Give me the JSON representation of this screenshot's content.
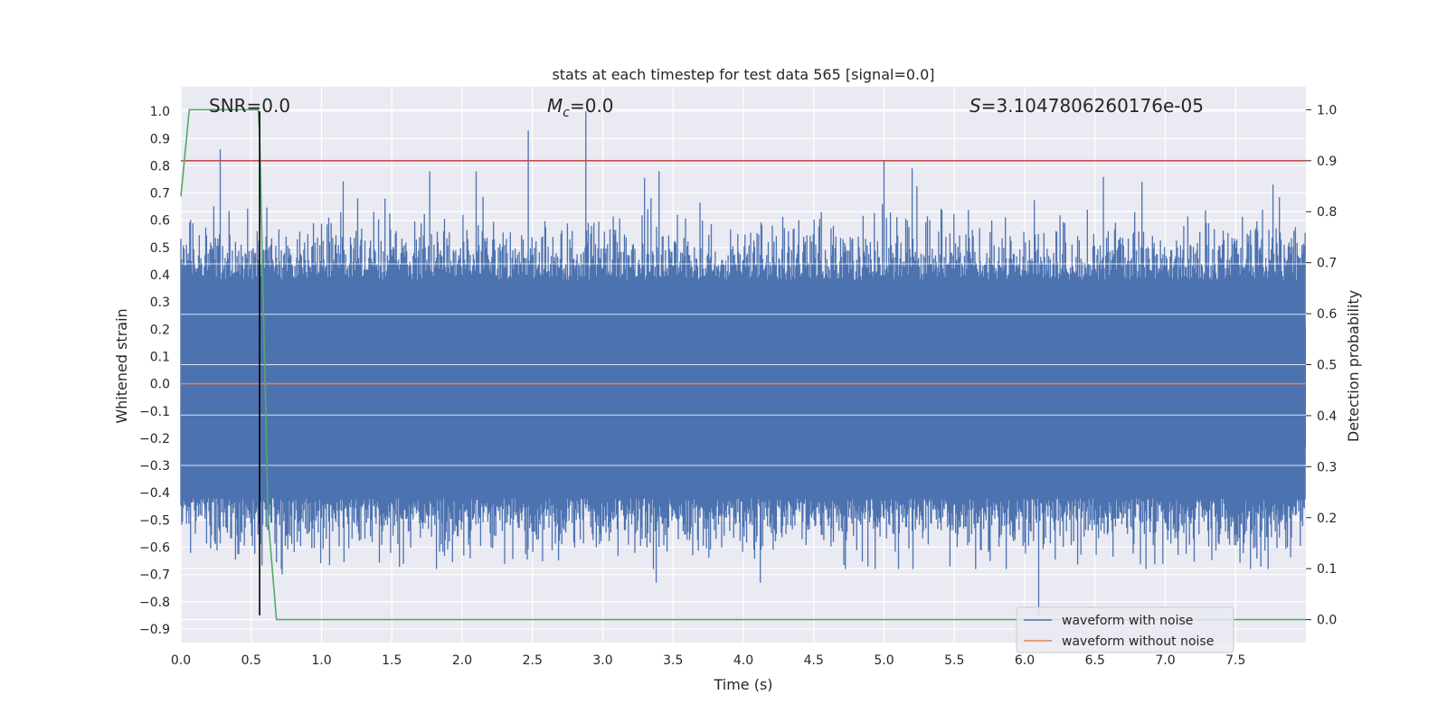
{
  "chart_data": {
    "type": "line",
    "title": "stats at each timestep for test data 565 [signal=0.0]",
    "xlabel": "Time (s)",
    "ylabel": "Whitened strain",
    "y2label": "Detection probability",
    "xlim": [
      0.0,
      8.0
    ],
    "ylim": [
      -0.95,
      1.09
    ],
    "y2lim": [
      -0.045,
      1.045
    ],
    "x_ticks": [
      "0.0",
      "0.5",
      "1.0",
      "1.5",
      "2.0",
      "2.5",
      "3.0",
      "3.5",
      "4.0",
      "4.5",
      "5.0",
      "5.5",
      "6.0",
      "6.5",
      "7.0",
      "7.5"
    ],
    "y_ticks": [
      "1.0",
      "0.9",
      "0.8",
      "0.7",
      "0.6",
      "0.5",
      "0.4",
      "0.3",
      "0.2",
      "0.1",
      "0.0",
      "−0.1",
      "−0.2",
      "−0.3",
      "−0.4",
      "−0.5",
      "−0.6",
      "−0.7",
      "−0.8",
      "−0.9"
    ],
    "y2_ticks": [
      "1.0",
      "0.9",
      "0.8",
      "0.7",
      "0.6",
      "0.5",
      "0.4",
      "0.3",
      "0.2",
      "0.1",
      "0.0"
    ],
    "grid": true,
    "legend_position": "lower-right",
    "annotations": {
      "snr": "SNR=0.0",
      "mc_symbol": "M",
      "mc_sub": "c",
      "mc_value": "=0.0",
      "s_symbol": "S",
      "s_value": "=3.1047806260176e-05"
    },
    "series": [
      {
        "name": "waveform with noise",
        "color": "#4c72b0",
        "description": "dense noise band roughly between -0.45 and 0.45, spikes up to 1.0 and down to -0.85",
        "envelope": {
          "typical_max": 0.38,
          "typical_min": -0.42,
          "spikes_up": [
            [
              0.28,
              0.86
            ],
            [
              2.47,
              0.93
            ],
            [
              2.88,
              1.0
            ],
            [
              5.0,
              0.82
            ],
            [
              5.2,
              0.79
            ],
            [
              1.77,
              0.78
            ],
            [
              2.1,
              0.78
            ]
          ],
          "spikes_down": [
            [
              6.1,
              -0.85
            ],
            [
              3.38,
              -0.73
            ],
            [
              4.12,
              -0.73
            ],
            [
              0.72,
              -0.7
            ]
          ]
        }
      },
      {
        "name": "waveform without noise",
        "color": "#dd8452",
        "x": [
          0.0,
          8.0
        ],
        "y": [
          0.0,
          0.0
        ]
      },
      {
        "axis": "right",
        "color": "#55a868",
        "x": [
          0.0,
          0.06,
          0.1,
          0.2,
          0.55,
          0.56,
          0.62,
          0.68,
          8.0
        ],
        "y": [
          0.83,
          1.0,
          1.0,
          1.0,
          1.0,
          0.95,
          0.2,
          0.0,
          0.0
        ]
      },
      {
        "axis": "right",
        "color": "#c44e52",
        "x": [
          0.0,
          8.0
        ],
        "y": [
          0.9,
          0.9
        ]
      }
    ],
    "marker_vline": {
      "color": "#000000",
      "x": 0.56,
      "y": [
        -0.85,
        1.0
      ]
    }
  }
}
